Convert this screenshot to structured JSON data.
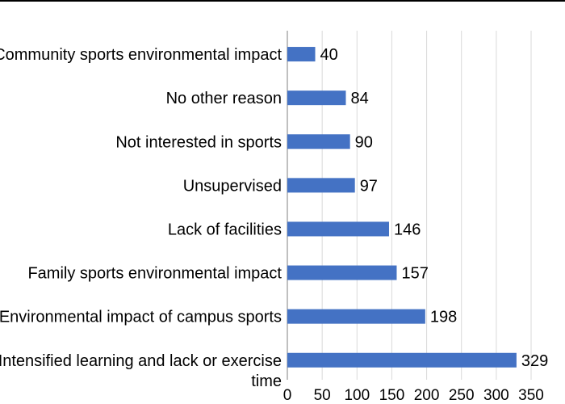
{
  "chart_data": {
    "type": "bar",
    "orientation": "horizontal",
    "title": "",
    "xlabel": "",
    "ylabel": "",
    "bar_color": "#4472C4",
    "xlim": [
      0,
      350
    ],
    "x_ticks": [
      0,
      50,
      100,
      150,
      200,
      250,
      300,
      350
    ],
    "grid": true,
    "legend": "none",
    "categories": [
      {
        "lines": [
          "Community sports environmental impact"
        ]
      },
      {
        "lines": [
          "No other reason"
        ]
      },
      {
        "lines": [
          "Not interested in sports"
        ]
      },
      {
        "lines": [
          "Unsupervised"
        ]
      },
      {
        "lines": [
          "Lack of facilities"
        ]
      },
      {
        "lines": [
          "Family sports environmental impact"
        ]
      },
      {
        "lines": [
          "Environmental impact of campus sports"
        ]
      },
      {
        "lines": [
          "Intensified learning and lack or exercise",
          "time"
        ]
      }
    ],
    "values": [
      40,
      84,
      90,
      97,
      146,
      157,
      198,
      329
    ]
  }
}
